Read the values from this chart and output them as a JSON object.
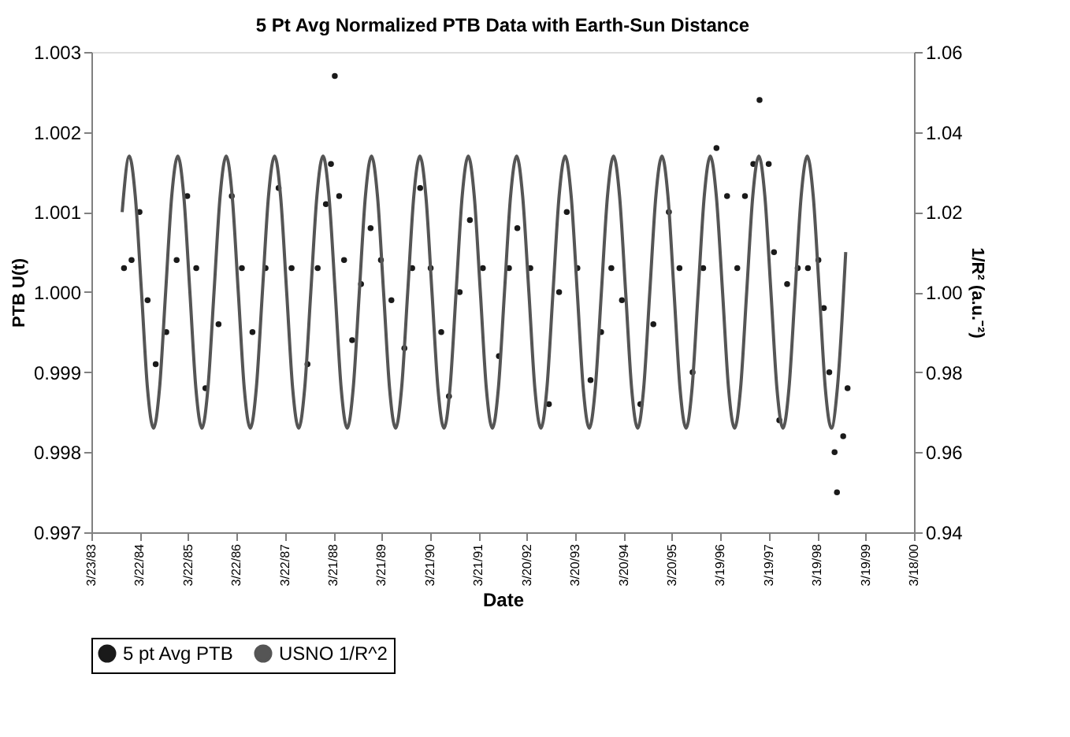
{
  "chart_data": {
    "type": "scatter",
    "title": "5 Pt Avg Normalized PTB Data with Earth-Sun Distance",
    "xlabel": "Date",
    "ylabel": "PTB U(t)",
    "y2label": "1/R² (a.u.⁻²)",
    "xlim": [
      "1983-03-23",
      "2000-03-18"
    ],
    "xticks": [
      {
        "value": "1983-03-23",
        "label": "3/23/83"
      },
      {
        "value": "1984-03-22",
        "label": "3/22/84"
      },
      {
        "value": "1985-03-22",
        "label": "3/22/85"
      },
      {
        "value": "1986-03-22",
        "label": "3/22/86"
      },
      {
        "value": "1987-03-22",
        "label": "3/22/87"
      },
      {
        "value": "1988-03-21",
        "label": "3/21/88"
      },
      {
        "value": "1989-03-21",
        "label": "3/21/89"
      },
      {
        "value": "1990-03-21",
        "label": "3/21/90"
      },
      {
        "value": "1991-03-21",
        "label": "3/21/91"
      },
      {
        "value": "1992-03-20",
        "label": "3/20/92"
      },
      {
        "value": "1993-03-20",
        "label": "3/20/93"
      },
      {
        "value": "1994-03-20",
        "label": "3/20/94"
      },
      {
        "value": "1995-03-20",
        "label": "3/20/95"
      },
      {
        "value": "1996-03-19",
        "label": "3/19/96"
      },
      {
        "value": "1997-03-19",
        "label": "3/19/97"
      },
      {
        "value": "1998-03-19",
        "label": "3/19/98"
      },
      {
        "value": "1999-03-19",
        "label": "3/19/99"
      },
      {
        "value": "2000-03-18",
        "label": "3/18/00"
      }
    ],
    "ylim": [
      0.997,
      1.003
    ],
    "yticks": [
      0.997,
      0.998,
      0.999,
      {
        "value": 1.0,
        "label": "1.000"
      },
      1.001,
      1.002,
      1.003
    ],
    "y2lim": [
      0.94,
      1.06
    ],
    "y2ticks": [
      0.94,
      0.96,
      0.98,
      {
        "value": 1.0,
        "label": "1.00"
      },
      1.02,
      1.04,
      1.06
    ],
    "grid": false,
    "legend": "bottom",
    "series": [
      {
        "name": "5 pt Avg PTB",
        "marker": "circle",
        "color": "#1a1a1a",
        "x": [
          "1983-11-24",
          "1984-01-20",
          "1984-03-20",
          "1984-05-20",
          "1984-07-20",
          "1984-10-08",
          "1984-12-25",
          "1985-03-15",
          "1985-05-22",
          "1985-07-30",
          "1985-11-06",
          "1986-02-14",
          "1986-05-01",
          "1986-07-20",
          "1986-10-27",
          "1987-02-02",
          "1987-05-11",
          "1987-09-08",
          "1987-11-24",
          "1988-01-25",
          "1988-03-03",
          "1988-04-01",
          "1988-05-04",
          "1988-06-10",
          "1988-08-10",
          "1988-10-16",
          "1988-12-27",
          "1989-03-15",
          "1989-06-02",
          "1989-09-08",
          "1989-11-06",
          "1990-01-05",
          "1990-03-25",
          "1990-06-13",
          "1990-08-10",
          "1990-10-30",
          "1991-01-15",
          "1991-04-23",
          "1991-08-22",
          "1991-11-06",
          "1992-01-08",
          "1992-04-15",
          "1992-09-02",
          "1992-11-18",
          "1993-01-15",
          "1993-04-05",
          "1993-07-13",
          "1993-10-01",
          "1993-12-17",
          "1994-03-07",
          "1994-07-24",
          "1994-10-30",
          "1995-02-24",
          "1995-05-15",
          "1995-08-22",
          "1995-11-10",
          "1996-02-18",
          "1996-05-08",
          "1996-07-24",
          "1996-09-20",
          "1996-11-22",
          "1997-01-08",
          "1997-03-18",
          "1997-04-27",
          "1997-06-06",
          "1997-08-04",
          "1997-10-23",
          "1998-01-08",
          "1998-03-28",
          "1998-05-08",
          "1998-06-18",
          "1998-07-28",
          "1998-08-15",
          "1998-10-01",
          "1998-11-03"
        ],
        "values": [
          1.0003,
          1.0004,
          1.001,
          0.9999,
          0.9991,
          0.9995,
          1.0004,
          1.0012,
          1.0003,
          0.9988,
          0.9996,
          1.0012,
          1.0003,
          0.9995,
          1.0003,
          1.0013,
          1.0003,
          0.9991,
          1.0003,
          1.0011,
          1.0016,
          1.0027,
          1.0012,
          1.0004,
          0.9994,
          1.0001,
          1.0008,
          1.0004,
          0.9999,
          0.9993,
          1.0003,
          1.0013,
          1.0003,
          0.9995,
          0.9987,
          1.0,
          1.0009,
          1.0003,
          0.9992,
          1.0003,
          1.0008,
          1.0003,
          0.9986,
          1.0,
          1.001,
          1.0003,
          0.9989,
          0.9995,
          1.0003,
          0.9999,
          0.9986,
          0.9996,
          1.001,
          1.0003,
          0.999,
          1.0003,
          1.0018,
          1.0012,
          1.0003,
          1.0012,
          1.0016,
          1.0024,
          1.0016,
          1.0005,
          0.9984,
          1.0001,
          1.0003,
          1.0003,
          1.0004,
          0.9998,
          0.999,
          0.998,
          0.9975,
          0.9982,
          0.9988
        ]
      },
      {
        "name": "USNO 1/R^2",
        "type": "line",
        "axis": "y2",
        "marker": "none",
        "line_style": "solid",
        "color": "#555555",
        "x": [
          "1983-11-10",
          "1984-01-03",
          "1984-02-17",
          "1984-04-04",
          "1984-05-19",
          "1984-07-04",
          "1984-08-18",
          "1984-10-03",
          "1984-11-18",
          "1985-01-03",
          "1985-02-17",
          "1985-04-04",
          "1985-05-19",
          "1985-07-04",
          "1985-08-18",
          "1985-10-03",
          "1985-11-18",
          "1986-01-03",
          "1986-02-17",
          "1986-04-04",
          "1986-05-19",
          "1986-07-04",
          "1986-08-18",
          "1986-10-03",
          "1986-11-18",
          "1987-01-03",
          "1987-02-17",
          "1987-04-04",
          "1987-05-19",
          "1987-07-04",
          "1987-08-18",
          "1987-10-03",
          "1987-11-18",
          "1988-01-03",
          "1988-02-17",
          "1988-04-04",
          "1988-05-19",
          "1988-07-04",
          "1988-08-18",
          "1988-10-03",
          "1988-11-18",
          "1989-01-03",
          "1989-02-17",
          "1989-04-04",
          "1989-05-19",
          "1989-07-04",
          "1989-08-18",
          "1989-10-03",
          "1989-11-18",
          "1990-01-03",
          "1990-02-17",
          "1990-04-04",
          "1990-05-19",
          "1990-07-04",
          "1990-08-18",
          "1990-10-03",
          "1990-11-18",
          "1991-01-03",
          "1991-02-17",
          "1991-04-04",
          "1991-05-19",
          "1991-07-04",
          "1991-08-18",
          "1991-10-03",
          "1991-11-18",
          "1992-01-03",
          "1992-02-17",
          "1992-04-04",
          "1992-05-19",
          "1992-07-04",
          "1992-08-18",
          "1992-10-03",
          "1992-11-18",
          "1993-01-03",
          "1993-02-17",
          "1993-04-04",
          "1993-05-19",
          "1993-07-04",
          "1993-08-18",
          "1993-10-03",
          "1993-11-18",
          "1994-01-03",
          "1994-02-17",
          "1994-04-04",
          "1994-05-19",
          "1994-07-04",
          "1994-08-18",
          "1994-10-03",
          "1994-11-18",
          "1995-01-03",
          "1995-02-17",
          "1995-04-04",
          "1995-05-19",
          "1995-07-04",
          "1995-08-18",
          "1995-10-03",
          "1995-11-18",
          "1996-01-03",
          "1996-02-17",
          "1996-04-04",
          "1996-05-19",
          "1996-07-04",
          "1996-08-18",
          "1996-10-03",
          "1996-11-18",
          "1997-01-03",
          "1997-02-17",
          "1997-04-04",
          "1997-05-19",
          "1997-07-04",
          "1997-08-18",
          "1997-10-03",
          "1997-11-18",
          "1998-01-03",
          "1998-02-17",
          "1998-04-04",
          "1998-05-19",
          "1998-07-04",
          "1998-08-18",
          "1998-10-20"
        ],
        "values": [
          1.02,
          1.034,
          1.024,
          1.0,
          0.976,
          0.966,
          0.976,
          1.0,
          1.024,
          1.034,
          1.024,
          1.0,
          0.976,
          0.966,
          0.976,
          1.0,
          1.024,
          1.034,
          1.024,
          1.0,
          0.976,
          0.966,
          0.976,
          1.0,
          1.024,
          1.034,
          1.024,
          1.0,
          0.976,
          0.966,
          0.976,
          1.0,
          1.024,
          1.034,
          1.024,
          1.0,
          0.976,
          0.966,
          0.976,
          1.0,
          1.024,
          1.034,
          1.024,
          1.0,
          0.976,
          0.966,
          0.976,
          1.0,
          1.024,
          1.034,
          1.024,
          1.0,
          0.976,
          0.966,
          0.976,
          1.0,
          1.024,
          1.034,
          1.024,
          1.0,
          0.976,
          0.966,
          0.976,
          1.0,
          1.024,
          1.034,
          1.024,
          1.0,
          0.976,
          0.966,
          0.976,
          1.0,
          1.024,
          1.034,
          1.024,
          1.0,
          0.976,
          0.966,
          0.976,
          1.0,
          1.024,
          1.034,
          1.024,
          1.0,
          0.976,
          0.966,
          0.976,
          1.0,
          1.024,
          1.034,
          1.024,
          1.0,
          0.976,
          0.966,
          0.976,
          1.0,
          1.024,
          1.034,
          1.024,
          1.0,
          0.976,
          0.966,
          0.976,
          1.0,
          1.024,
          1.034,
          1.024,
          1.0,
          0.976,
          0.966,
          0.976,
          1.0,
          1.024,
          1.034,
          1.024,
          1.0,
          0.976,
          0.966,
          0.976,
          1.01
        ]
      }
    ]
  }
}
